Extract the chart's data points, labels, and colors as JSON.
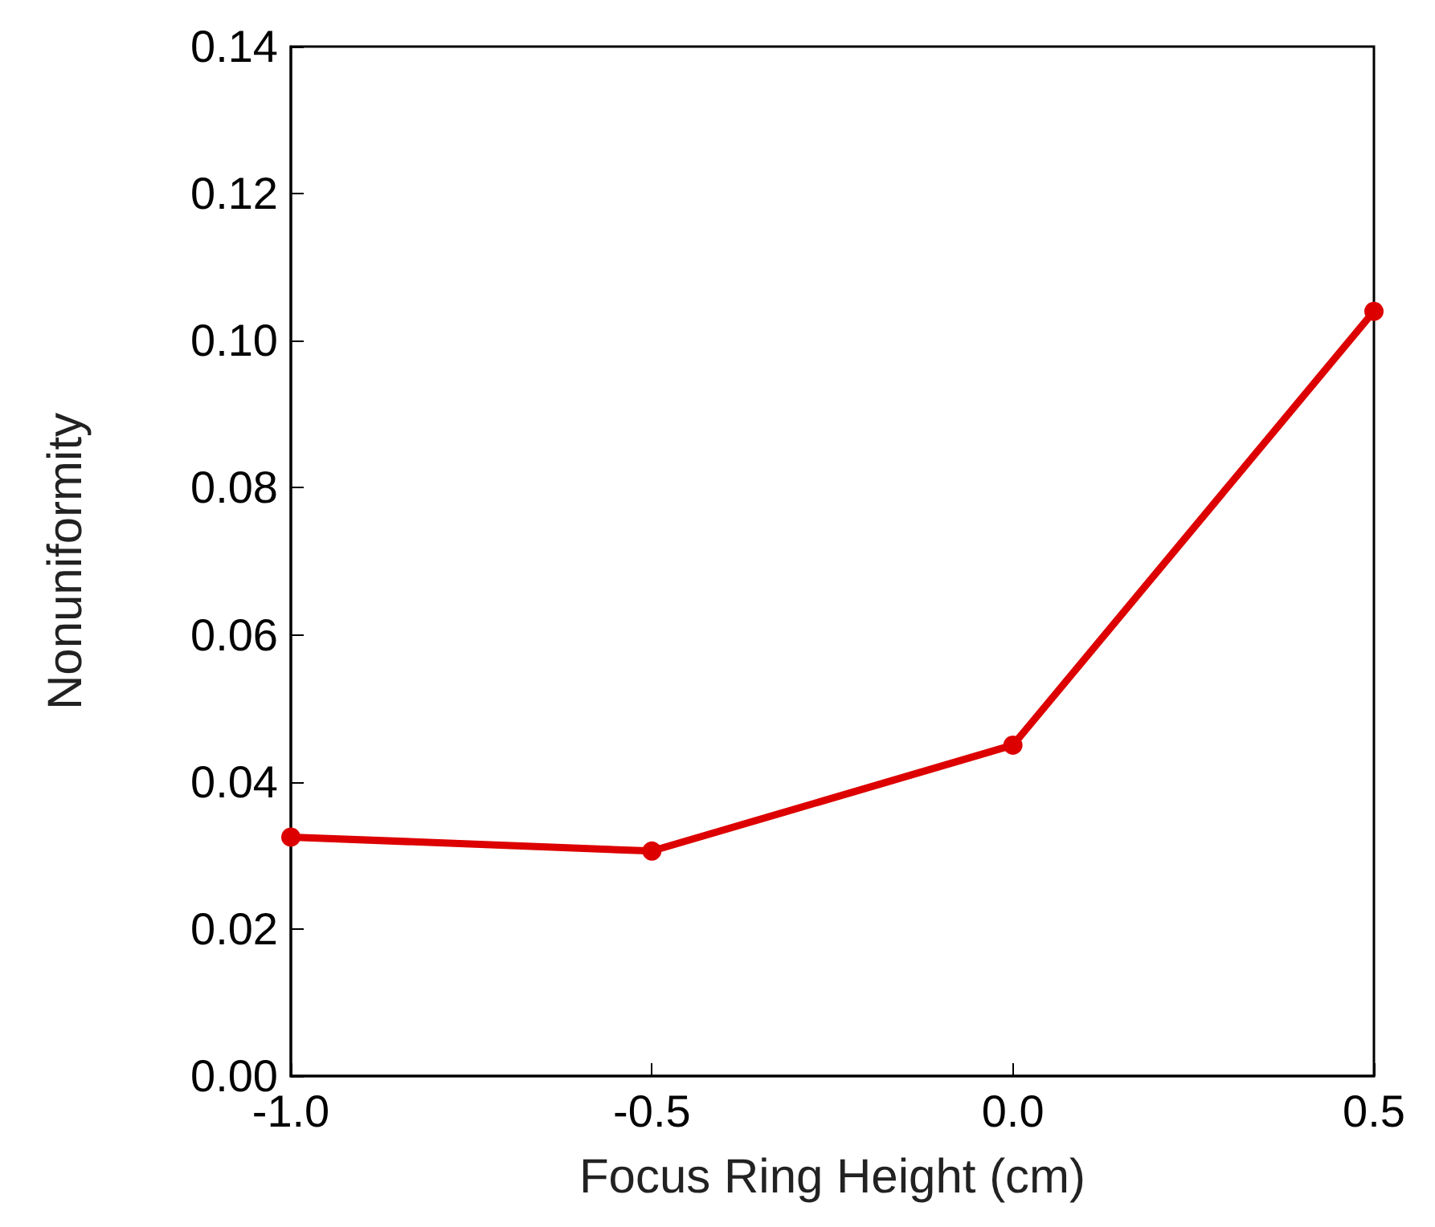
{
  "chart_data": {
    "type": "line",
    "xlabel": "Focus Ring Height (cm)",
    "ylabel": "Nonuniformity",
    "x": [
      -1.0,
      -0.5,
      0.0,
      0.5
    ],
    "series": [
      {
        "color": "#dd0000",
        "values": [
          0.0325,
          0.0306,
          0.045,
          0.104
        ]
      }
    ],
    "xlim": [
      -1.0,
      0.5
    ],
    "xticks": [
      {
        "value": -1.0,
        "label": "-1.0"
      },
      {
        "value": -0.5,
        "label": "-0.5"
      },
      {
        "value": 0,
        "label": "0.0"
      },
      {
        "value": 0.5,
        "label": "0.5"
      }
    ],
    "ylim": [
      0,
      0.14
    ],
    "yticks": [
      {
        "value": 0,
        "label": "0.00"
      },
      {
        "value": 0.02,
        "label": "0.02"
      },
      {
        "value": 0.04,
        "label": "0.04"
      },
      {
        "value": 0.06,
        "label": "0.06"
      },
      {
        "value": 0.08,
        "label": "0.08"
      },
      {
        "value": 0.1,
        "label": "0.10"
      },
      {
        "value": 0.12,
        "label": "0.12"
      },
      {
        "value": 0.14,
        "label": "0.14"
      }
    ],
    "grid": false,
    "marker": "circle",
    "line_style": "solid"
  }
}
